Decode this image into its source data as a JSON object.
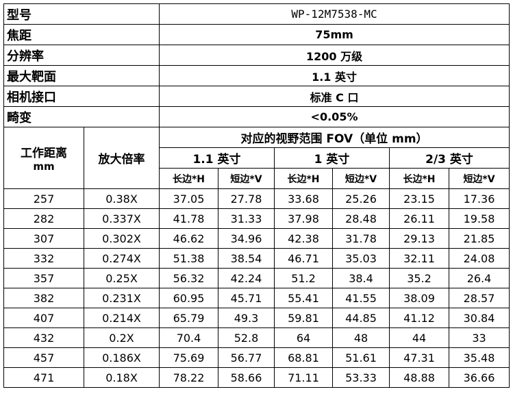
{
  "specs": [
    {
      "label": "型号",
      "value": "WP-12M7538-MC"
    },
    {
      "label": "焦距",
      "value": "75mm"
    },
    {
      "label": "分辨率",
      "value": "1200 万级"
    },
    {
      "label": "最大靶面",
      "value": "1.1 英寸"
    },
    {
      "label": "相机接口",
      "value": "标准 C 口"
    },
    {
      "label": "畸变",
      "value": "<0.05%"
    }
  ],
  "fov_table": {
    "distance_label": "工作距离",
    "distance_unit": "mm",
    "magnification": "放大倍率",
    "fov_title": "对应的视野范围 FOV（单位 mm）",
    "sensors": [
      "1.1 英寸",
      "1 英寸",
      "2/3 英寸"
    ],
    "sub_headers": [
      "长边*H",
      "短边*V",
      "长边*H",
      "短边*V",
      "长边*H",
      "短边*V"
    ],
    "rows": [
      [
        "257",
        "0.38X",
        "37.05",
        "27.78",
        "33.68",
        "25.26",
        "23.15",
        "17.36"
      ],
      [
        "282",
        "0.337X",
        "41.78",
        "31.33",
        "37.98",
        "28.48",
        "26.11",
        "19.58"
      ],
      [
        "307",
        "0.302X",
        "46.62",
        "34.96",
        "42.38",
        "31.78",
        "29.13",
        "21.85"
      ],
      [
        "332",
        "0.274X",
        "51.38",
        "38.54",
        "46.71",
        "35.03",
        "32.11",
        "24.08"
      ],
      [
        "357",
        "0.25X",
        "56.32",
        "42.24",
        "51.2",
        "38.4",
        "35.2",
        "26.4"
      ],
      [
        "382",
        "0.231X",
        "60.95",
        "45.71",
        "55.41",
        "41.55",
        "38.09",
        "28.57"
      ],
      [
        "407",
        "0.214X",
        "65.79",
        "49.3",
        "59.81",
        "44.85",
        "41.12",
        "30.84"
      ],
      [
        "432",
        "0.2X",
        "70.4",
        "52.8",
        "64",
        "48",
        "44",
        "33"
      ],
      [
        "457",
        "0.186X",
        "75.69",
        "56.77",
        "68.81",
        "51.61",
        "47.31",
        "35.48"
      ],
      [
        "471",
        "0.18X",
        "78.22",
        "58.66",
        "71.11",
        "53.33",
        "48.88",
        "36.66"
      ]
    ]
  }
}
